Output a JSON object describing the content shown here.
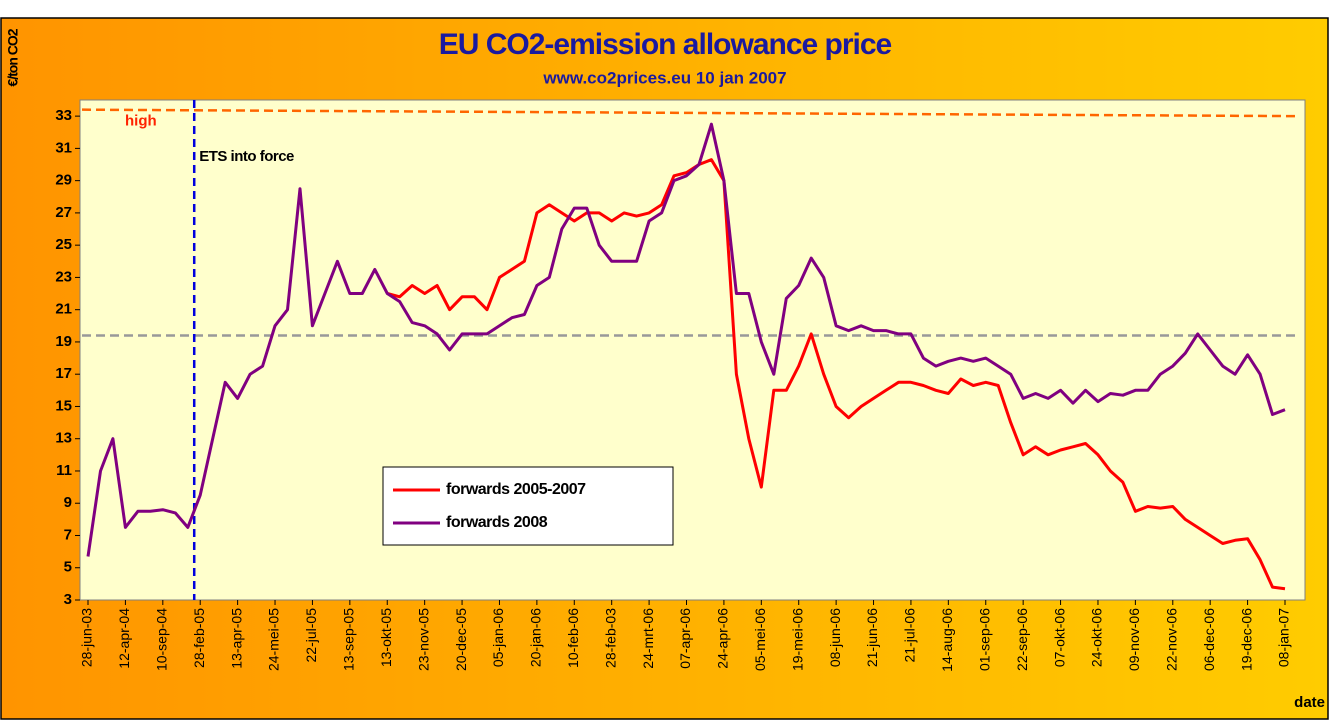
{
  "chart_data": {
    "type": "line",
    "title": "EU CO2-emission allowance price",
    "subtitle": "www.co2prices.eu 10 jan 2007",
    "y_label": "€/ton CO2",
    "x_label": "date",
    "categories": [
      "28-jun-03",
      null,
      null,
      "12-apr-04",
      null,
      null,
      "10-sep-04",
      null,
      null,
      "28-feb-05",
      null,
      null,
      "13-apr-05",
      null,
      null,
      "24-mei-05",
      null,
      null,
      "22-jul-05",
      null,
      null,
      "13-sep-05",
      null,
      null,
      "13-okt-05",
      null,
      null,
      "23-nov-05",
      null,
      null,
      "20-dec-05",
      null,
      null,
      "05-jan-06",
      null,
      null,
      "20-jan-06",
      null,
      null,
      "10-feb-06",
      null,
      null,
      "28-feb-03",
      null,
      null,
      "24-mrt-06",
      null,
      null,
      "07-apr-06",
      null,
      null,
      "24-apr-06",
      null,
      null,
      "05-mei-06",
      null,
      null,
      "19-mei-06",
      null,
      null,
      "08-jun-06",
      null,
      null,
      "21-jun-06",
      null,
      null,
      "21-jul-06",
      null,
      null,
      "14-aug-06",
      null,
      null,
      "01-sep-06",
      null,
      null,
      "22-sep-06",
      null,
      null,
      "07-okt-06",
      null,
      null,
      "24-okt-06",
      null,
      null,
      "09-nov-06",
      null,
      null,
      "22-nov-06",
      null,
      null,
      "06-dec-06",
      null,
      null,
      "19-dec-06",
      null,
      null,
      "08-jan-07"
    ],
    "series": [
      {
        "name": "forwards 2005-2007",
        "color": "#ff0000",
        "values": [
          null,
          null,
          null,
          null,
          null,
          null,
          null,
          null,
          null,
          null,
          null,
          null,
          null,
          null,
          null,
          null,
          null,
          null,
          null,
          null,
          null,
          null,
          null,
          null,
          22,
          21.8,
          22.5,
          22,
          22.5,
          21,
          21.8,
          21.8,
          21,
          23,
          23.5,
          24,
          27,
          27.5,
          27,
          26.5,
          27,
          27,
          26.5,
          27,
          26.8,
          27,
          27.5,
          29.3,
          29.5,
          30,
          30.3,
          29,
          17,
          13,
          10,
          16,
          16,
          17.5,
          19.5,
          17,
          15,
          14.3,
          15,
          15.5,
          16,
          16.5,
          16.5,
          16.3,
          16,
          15.8,
          16.7,
          16.3,
          16.5,
          16.3,
          14,
          12,
          12.5,
          12,
          12.3,
          12.5,
          12.7,
          12,
          11,
          10.3,
          8.5,
          8.8,
          8.7,
          8.8,
          8,
          7.5,
          7,
          6.5,
          6.7,
          6.8,
          5.5,
          3.8,
          3.7
        ]
      },
      {
        "name": "forwards 2008",
        "color": "#800080",
        "values": [
          5.7,
          11,
          13,
          7.5,
          8.5,
          8.5,
          8.6,
          8.4,
          7.5,
          9.5,
          13,
          16.5,
          15.5,
          17,
          17.5,
          20,
          21,
          28.5,
          20,
          22,
          24,
          22,
          22,
          23.5,
          22,
          21.5,
          20.2,
          20,
          19.5,
          18.5,
          19.5,
          19.5,
          19.5,
          20,
          20.5,
          20.7,
          22.5,
          23,
          26,
          27.3,
          27.3,
          25,
          24,
          24,
          24,
          26.5,
          27,
          29,
          29.3,
          30,
          32.5,
          29,
          22,
          22,
          19,
          17,
          21.7,
          22.5,
          24.2,
          23,
          20,
          19.7,
          20,
          19.7,
          19.7,
          19.5,
          19.5,
          18,
          17.5,
          17.8,
          18,
          17.8,
          18,
          17.5,
          17,
          15.5,
          15.8,
          15.5,
          16,
          15.2,
          16,
          15.3,
          15.8,
          15.7,
          16,
          16,
          17,
          17.5,
          18.3,
          19.5,
          18.5,
          17.5,
          17,
          18.2,
          17,
          14.5,
          14.8
        ]
      }
    ],
    "reference_lines": [
      {
        "label": "high",
        "values": [
          33.4,
          33
        ],
        "color": "#ff6600"
      },
      {
        "values": [
          19.4,
          19.4
        ],
        "color": "#999999"
      }
    ],
    "annotations": [
      {
        "text": "ETS into force",
        "at": "28-feb-05",
        "color": "#0000dd"
      }
    ],
    "ylim": [
      3,
      34
    ],
    "yticks": [
      3,
      5,
      7,
      9,
      11,
      13,
      15,
      17,
      19,
      21,
      23,
      25,
      27,
      29,
      31,
      33
    ]
  }
}
